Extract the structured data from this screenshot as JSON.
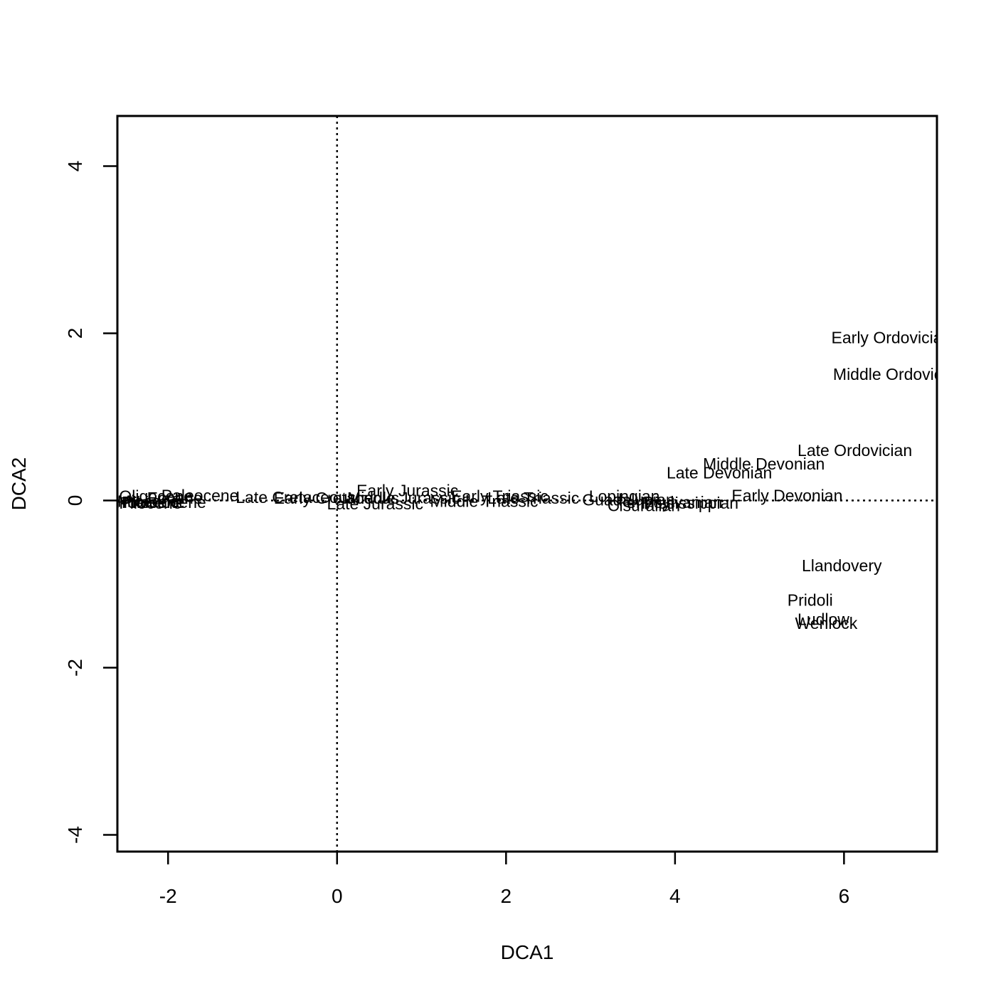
{
  "chart_data": {
    "type": "scatter",
    "title": "",
    "xlabel": "DCA1",
    "ylabel": "DCA2",
    "xlim": [
      -2.6,
      7.1
    ],
    "ylim": [
      -4.2,
      4.6
    ],
    "xticks": [
      "-2",
      "0",
      "2",
      "4",
      "6"
    ],
    "yticks": [
      "-4",
      "-2",
      "0",
      "2",
      "4"
    ],
    "xtick_values": [
      -2,
      0,
      2,
      4,
      6
    ],
    "ytick_values": [
      -4,
      -2,
      0,
      2,
      4
    ],
    "reference_lines": {
      "x": 0,
      "y": 0,
      "style": "dotted"
    },
    "grid": false,
    "legend": "none",
    "points": [
      {
        "label": "Early Ordovician",
        "x": 5.85,
        "y": 1.95
      },
      {
        "label": "Middle Ordovician",
        "x": 5.87,
        "y": 1.51
      },
      {
        "label": "Late Ordovician",
        "x": 5.45,
        "y": 0.6
      },
      {
        "label": "Middle Devonian",
        "x": 4.33,
        "y": 0.44
      },
      {
        "label": "Late Devonian",
        "x": 3.9,
        "y": 0.33
      },
      {
        "label": "Early Devonian",
        "x": 4.67,
        "y": 0.06
      },
      {
        "label": "Llandovery",
        "x": 5.5,
        "y": -0.78
      },
      {
        "label": "Pridoli",
        "x": 5.33,
        "y": -1.19
      },
      {
        "label": "Ludlow",
        "x": 5.45,
        "y": -1.42
      },
      {
        "label": "Wenlock",
        "x": 5.42,
        "y": -1.47
      },
      {
        "label": "Early Jurassic",
        "x": 0.23,
        "y": 0.12
      },
      {
        "label": "Late Jurassic",
        "x": -0.12,
        "y": -0.04
      },
      {
        "label": "Middle Jurassic",
        "x": 0.12,
        "y": 0.03
      },
      {
        "label": "Late Triassic",
        "x": 1.78,
        "y": 0.03
      },
      {
        "label": "Middle Triassic",
        "x": 1.1,
        "y": -0.01
      },
      {
        "label": "Early Triassic",
        "x": 1.35,
        "y": 0.05
      },
      {
        "label": "Lopingian",
        "x": 2.98,
        "y": 0.05
      },
      {
        "label": "Guadalupian",
        "x": 2.9,
        "y": 0.01
      },
      {
        "label": "Cisuralian",
        "x": 3.2,
        "y": -0.06
      },
      {
        "label": "Pennsylvanian",
        "x": 3.3,
        "y": -0.02
      },
      {
        "label": "Mississippian",
        "x": 3.6,
        "y": -0.03
      },
      {
        "label": "Late Cretaceous",
        "x": -1.2,
        "y": 0.04
      },
      {
        "label": "Early Cretaceous",
        "x": -0.75,
        "y": 0.03
      },
      {
        "label": "Paleocene",
        "x": -2.08,
        "y": 0.06
      },
      {
        "label": "Eocene",
        "x": -2.25,
        "y": 0.03
      },
      {
        "label": "Oligocene",
        "x": -2.58,
        "y": 0.05
      },
      {
        "label": "Miocene",
        "x": -2.6,
        "y": -0.01
      },
      {
        "label": "Pliocene",
        "x": -2.58,
        "y": -0.03
      },
      {
        "label": "Pleistocene",
        "x": -2.55,
        "y": -0.02
      },
      {
        "label": "Holocene",
        "x": -2.62,
        "y": -0.02
      }
    ]
  }
}
